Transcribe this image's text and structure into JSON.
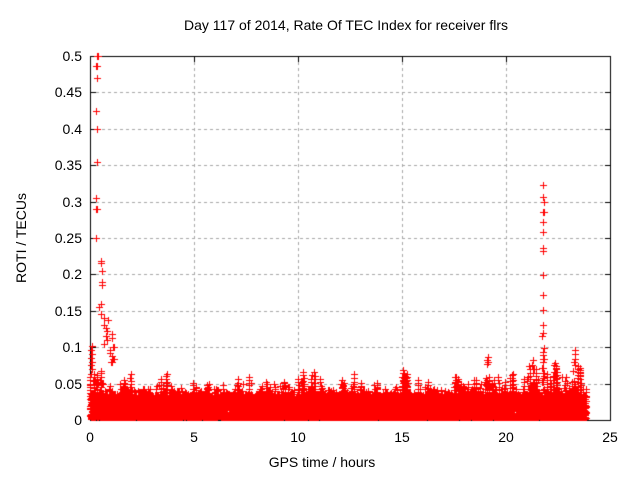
{
  "chart_data": {
    "type": "scatter",
    "title": "Day 117 of 2014, Rate Of TEC Index for receiver flrs",
    "xlabel": "GPS time / hours",
    "ylabel": "ROTI / TECUs",
    "xlim": [
      0,
      25
    ],
    "ylim": [
      0,
      0.5
    ],
    "x_tick_values": [
      0,
      5,
      10,
      15,
      20,
      25
    ],
    "x_tick_labels": [
      "0",
      "5",
      "10",
      "15",
      "20",
      "25"
    ],
    "y_tick_values": [
      0,
      0.05,
      0.1,
      0.15,
      0.2,
      0.25,
      0.3,
      0.35,
      0.4,
      0.45,
      0.5
    ],
    "y_tick_labels": [
      "0",
      "0.05",
      "0.1",
      "0.15",
      "0.2",
      "0.25",
      "0.3",
      "0.35",
      "0.4",
      "0.45",
      "0.5"
    ],
    "grid": "dashed",
    "grid_color": "#a8a8a8",
    "axis_color": "#000000",
    "background_color": "#ffffff",
    "marker": {
      "shape": "plus",
      "color": "#ff0000",
      "size": 7
    },
    "data_x_range": [
      0,
      23.87
    ],
    "baseline_band": {
      "n_points": 7000,
      "y_min": 0.001,
      "y_max": 0.036,
      "power": 1.6
    },
    "mid_band": {
      "n_points": 1300,
      "y_base": 0.018,
      "exp_mean": 0.009,
      "envelope_fraction": 0.78
    },
    "hourly_max_envelope": [
      0.075,
      0.065,
      0.055,
      0.065,
      0.052,
      0.055,
      0.06,
      0.065,
      0.055,
      0.06,
      0.07,
      0.06,
      0.072,
      0.055,
      0.05,
      0.075,
      0.06,
      0.065,
      0.058,
      0.07,
      0.065,
      0.08,
      0.08,
      0.09
    ],
    "tree_columns": {
      "per_hour": 10,
      "y_start": 0.02,
      "y_step": 0.0045
    },
    "spikes": [
      {
        "name": "dawn-spike-main",
        "x": 0.32,
        "x_jitter": 0.04,
        "values": [
          0.5,
          0.486,
          0.47,
          0.425,
          0.4,
          0.355,
          0.305,
          0.29,
          0.25
        ]
      },
      {
        "name": "dawn-spike-mid",
        "x": 0.55,
        "x_jitter": 0.1,
        "values": [
          0.218,
          0.215,
          0.205,
          0.19,
          0.186,
          0.16,
          0.155,
          0.146
        ]
      },
      {
        "name": "dawn-spike-lower",
        "x": 0.75,
        "x_jitter": 0.12,
        "values": [
          0.14,
          0.137,
          0.13,
          0.126,
          0.122,
          0.115,
          0.11,
          0.105
        ]
      },
      {
        "name": "dawn-cluster-1h",
        "x": 1.0,
        "x_jitter": 0.15,
        "values": [
          0.118,
          0.112,
          0.1,
          0.096,
          0.092,
          0.088,
          0.084,
          0.08
        ]
      },
      {
        "name": "left-edge-cluster",
        "x": 0.08,
        "x_jitter": 0.05,
        "values": [
          0.102,
          0.096,
          0.09,
          0.085,
          0.08,
          0.075,
          0.07
        ]
      },
      {
        "name": "evening-spike-21-8h",
        "x": 21.78,
        "x_jitter": 0.03,
        "values": [
          0.323,
          0.306,
          0.3,
          0.286,
          0.272,
          0.258,
          0.236,
          0.232,
          0.199,
          0.172,
          0.151,
          0.13,
          0.119,
          0.115,
          0.099,
          0.093,
          0.089,
          0.084,
          0.08,
          0.072,
          0.065,
          0.058,
          0.052
        ]
      },
      {
        "name": "cluster-19-1h",
        "x": 19.12,
        "x_jitter": 0.04,
        "values": [
          0.086,
          0.083,
          0.08,
          0.077
        ]
      },
      {
        "name": "cluster-21-3h",
        "x": 21.3,
        "x_jitter": 0.05,
        "values": [
          0.082,
          0.076,
          0.07,
          0.064
        ]
      },
      {
        "name": "cluster-22-4h",
        "x": 22.35,
        "x_jitter": 0.06,
        "values": [
          0.076,
          0.071,
          0.066,
          0.06,
          0.055
        ]
      },
      {
        "name": "cluster-23-3h",
        "x": 23.3,
        "x_jitter": 0.05,
        "values": [
          0.096,
          0.09,
          0.084,
          0.079,
          0.075
        ]
      }
    ],
    "seed": 117
  }
}
